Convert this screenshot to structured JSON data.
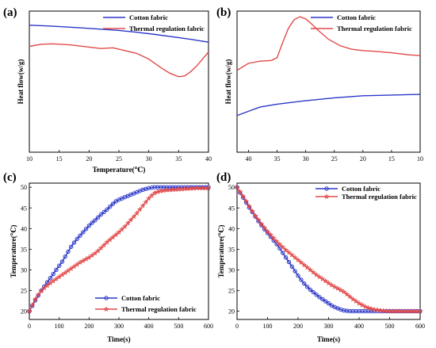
{
  "figure": {
    "background": "#ffffff"
  },
  "colors": {
    "cotton": "#2b37c9",
    "thermal": "#e24a4a",
    "axis": "#000000"
  },
  "chart_data": [
    {
      "panel": "(a)",
      "type": "line",
      "xlabel": "Temperature(℃)",
      "ylabel": "Heat flow(w/g)",
      "xlim": [
        10,
        40
      ],
      "xticks": [
        10,
        15,
        20,
        25,
        30,
        35,
        40
      ],
      "ylim": [
        0,
        1
      ],
      "yticks_visible": false,
      "legend": "top-right",
      "series": [
        {
          "name": "Cotton fabric",
          "color": "#2b37c9",
          "marker": "none",
          "x": [
            10,
            13,
            16,
            19,
            22,
            25,
            28,
            31,
            34,
            37,
            40
          ],
          "y": [
            0.9,
            0.895,
            0.888,
            0.88,
            0.872,
            0.863,
            0.85,
            0.835,
            0.818,
            0.8,
            0.78
          ]
        },
        {
          "name": "Thermal regulation fabric",
          "color": "#e24a4a",
          "marker": "none",
          "x": [
            10,
            12,
            14,
            17,
            20,
            22,
            24,
            26,
            28,
            30,
            32,
            33.5,
            35,
            36,
            37,
            38,
            39,
            40
          ],
          "y": [
            0.75,
            0.765,
            0.768,
            0.76,
            0.745,
            0.735,
            0.74,
            0.72,
            0.7,
            0.66,
            0.6,
            0.56,
            0.535,
            0.54,
            0.57,
            0.61,
            0.66,
            0.71
          ]
        }
      ]
    },
    {
      "panel": "(b)",
      "type": "line",
      "xlabel": "",
      "ylabel": "Heat flow(w/g)",
      "xlim": [
        42,
        10
      ],
      "xticks": [
        40,
        35,
        30,
        25,
        20,
        15,
        10
      ],
      "ylim": [
        0,
        1
      ],
      "yticks_visible": false,
      "legend": "top-right",
      "series": [
        {
          "name": "Cotton fabric",
          "color": "#2b37c9",
          "marker": "none",
          "x": [
            42,
            40,
            38,
            35,
            30,
            25,
            20,
            15,
            10
          ],
          "y": [
            0.26,
            0.29,
            0.32,
            0.34,
            0.365,
            0.385,
            0.4,
            0.405,
            0.41
          ]
        },
        {
          "name": "Thermal regulation fabric",
          "color": "#e24a4a",
          "marker": "none",
          "x": [
            42,
            40,
            38,
            36,
            35,
            34,
            33,
            32,
            31,
            30,
            29,
            28,
            26,
            24,
            22,
            20,
            18,
            15,
            12,
            10
          ],
          "y": [
            0.58,
            0.63,
            0.645,
            0.65,
            0.67,
            0.78,
            0.88,
            0.94,
            0.96,
            0.945,
            0.91,
            0.87,
            0.8,
            0.755,
            0.73,
            0.72,
            0.715,
            0.705,
            0.69,
            0.685
          ]
        }
      ]
    },
    {
      "panel": "(c)",
      "type": "line",
      "xlabel": "Time(s)",
      "ylabel": "Temperature(℃)",
      "xlim": [
        0,
        600
      ],
      "xticks": [
        0,
        100,
        200,
        300,
        400,
        500,
        600
      ],
      "ylim": [
        18,
        51
      ],
      "yticks": [
        20,
        25,
        30,
        35,
        40,
        45,
        50
      ],
      "legend": "bottom-right",
      "series": [
        {
          "name": "Cotton fabric",
          "color": "#2b37c9",
          "marker": "circle",
          "x": [
            0,
            10,
            20,
            30,
            40,
            50,
            60,
            70,
            80,
            90,
            100,
            110,
            120,
            130,
            140,
            150,
            160,
            170,
            180,
            190,
            200,
            210,
            220,
            230,
            240,
            250,
            260,
            270,
            280,
            290,
            300,
            310,
            320,
            330,
            340,
            350,
            360,
            370,
            380,
            390,
            400,
            410,
            420,
            430,
            440,
            450,
            460,
            470,
            480,
            490,
            500,
            510,
            520,
            530,
            540,
            550,
            560,
            570,
            580,
            590,
            600
          ],
          "y": [
            20,
            21.3,
            22.6,
            23.8,
            25,
            26,
            27,
            28,
            29,
            30,
            31,
            32,
            33.2,
            34.4,
            35.6,
            36.6,
            37.5,
            38.3,
            39.1,
            39.9,
            40.7,
            41.4,
            42,
            42.7,
            43.4,
            44,
            44.6,
            45.3,
            46,
            46.6,
            47,
            47.3,
            47.6,
            47.9,
            48.2,
            48.5,
            48.8,
            49.1,
            49.4,
            49.6,
            49.8,
            49.9,
            50,
            50,
            50,
            50,
            50,
            50,
            50,
            50,
            50,
            50,
            50,
            50,
            50,
            50,
            50,
            50,
            50,
            50,
            50
          ]
        },
        {
          "name": "Thermal regulation fabric",
          "color": "#e24a4a",
          "marker": "star",
          "x": [
            0,
            10,
            20,
            30,
            40,
            50,
            60,
            70,
            80,
            90,
            100,
            110,
            120,
            130,
            140,
            150,
            160,
            170,
            180,
            190,
            200,
            210,
            220,
            230,
            240,
            250,
            260,
            270,
            280,
            290,
            300,
            310,
            320,
            330,
            340,
            350,
            360,
            370,
            380,
            390,
            400,
            410,
            420,
            430,
            440,
            450,
            460,
            470,
            480,
            490,
            500,
            510,
            520,
            530,
            540,
            550,
            560,
            570,
            580,
            590,
            600
          ],
          "y": [
            20,
            21.5,
            22.9,
            24,
            24.9,
            25.6,
            26.2,
            26.8,
            27.3,
            27.8,
            28.3,
            28.8,
            29.3,
            29.8,
            30.3,
            30.8,
            31.3,
            31.8,
            32.2,
            32.6,
            33,
            33.5,
            34,
            34.6,
            35.3,
            36,
            36.7,
            37.3,
            37.9,
            38.5,
            39.1,
            39.8,
            40.5,
            41.3,
            42.1,
            42.9,
            43.7,
            44.6,
            45.5,
            46.4,
            47.3,
            48,
            48.6,
            48.9,
            49.1,
            49.2,
            49.3,
            49.35,
            49.4,
            49.45,
            49.5,
            49.55,
            49.6,
            49.65,
            49.7,
            49.75,
            49.8,
            49.8,
            49.8,
            49.8,
            49.8
          ]
        }
      ]
    },
    {
      "panel": "(d)",
      "type": "line",
      "xlabel": "Time(s)",
      "ylabel": "Temperature(℃)",
      "xlim": [
        0,
        600
      ],
      "xticks": [
        0,
        100,
        200,
        300,
        400,
        500,
        600
      ],
      "ylim": [
        18,
        51
      ],
      "yticks": [
        20,
        25,
        30,
        35,
        40,
        45,
        50
      ],
      "legend": "top-right",
      "series": [
        {
          "name": "Cotton fabric",
          "color": "#2b37c9",
          "marker": "circle",
          "x": [
            0,
            10,
            20,
            30,
            40,
            50,
            60,
            70,
            80,
            90,
            100,
            110,
            120,
            130,
            140,
            150,
            160,
            170,
            180,
            190,
            200,
            210,
            220,
            230,
            240,
            250,
            260,
            270,
            280,
            290,
            300,
            310,
            320,
            330,
            340,
            350,
            360,
            370,
            380,
            390,
            400,
            410,
            420,
            430,
            440,
            450,
            460,
            470,
            480,
            490,
            500,
            510,
            520,
            530,
            540,
            550,
            560,
            570,
            580,
            590,
            600
          ],
          "y": [
            50,
            48.7,
            47.5,
            46.3,
            45.1,
            44,
            42.9,
            41.8,
            40.8,
            39.8,
            38.9,
            38,
            37.1,
            36.2,
            35.2,
            34.1,
            33,
            31.9,
            30.8,
            29.7,
            28.6,
            27.6,
            26.7,
            25.9,
            25.2,
            24.6,
            24,
            23.4,
            22.9,
            22.4,
            21.9,
            21.4,
            21,
            20.7,
            20.4,
            20.2,
            20.1,
            20,
            20,
            20,
            20,
            20,
            20,
            20,
            20,
            20,
            20,
            20,
            20,
            20,
            20,
            20,
            20,
            20,
            20,
            20,
            20,
            20,
            20,
            20,
            20
          ]
        },
        {
          "name": "Thermal regulation fabric",
          "color": "#e24a4a",
          "marker": "star",
          "x": [
            0,
            10,
            20,
            30,
            40,
            50,
            60,
            70,
            80,
            90,
            100,
            110,
            120,
            130,
            140,
            150,
            160,
            170,
            180,
            190,
            200,
            210,
            220,
            230,
            240,
            250,
            260,
            270,
            280,
            290,
            300,
            310,
            320,
            330,
            340,
            350,
            360,
            370,
            380,
            390,
            400,
            410,
            420,
            430,
            440,
            450,
            460,
            470,
            480,
            490,
            500,
            510,
            520,
            530,
            540,
            550,
            560,
            570,
            580,
            590,
            600
          ],
          "y": [
            50,
            48.9,
            47.8,
            46.6,
            45.4,
            44.2,
            43.1,
            42.1,
            41.1,
            40.2,
            39.3,
            38.5,
            37.7,
            36.9,
            36.2,
            35.5,
            34.8,
            34.2,
            33.6,
            33,
            32.4,
            31.8,
            31.2,
            30.6,
            30,
            29.4,
            28.8,
            28.3,
            27.8,
            27.3,
            26.8,
            26.3,
            25.9,
            25.5,
            25.1,
            24.7,
            24.1,
            23.5,
            22.9,
            22.4,
            21.9,
            21.5,
            21.1,
            20.8,
            20.6,
            20.4,
            20.3,
            20.2,
            20.1,
            20.05,
            20,
            20,
            20,
            20,
            20,
            20,
            20,
            20,
            20,
            20,
            20
          ]
        }
      ]
    }
  ]
}
